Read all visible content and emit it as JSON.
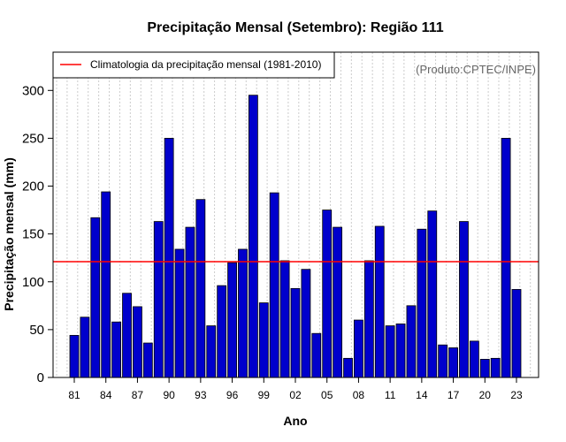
{
  "chart_data": {
    "type": "bar",
    "title": "Precipitação Mensal (Setembro): Região 111",
    "xlabel": "Ano",
    "ylabel": "Precipitação mensal (mm)",
    "credit": "(Produto:CPTEC/INPE)",
    "ylim": [
      0,
      340
    ],
    "yticks": [
      0,
      50,
      100,
      150,
      200,
      250,
      300
    ],
    "categories": [
      "81",
      "82",
      "83",
      "84",
      "85",
      "86",
      "87",
      "88",
      "89",
      "90",
      "91",
      "92",
      "93",
      "94",
      "95",
      "96",
      "97",
      "98",
      "99",
      "00",
      "01",
      "02",
      "03",
      "04",
      "05",
      "06",
      "07",
      "08",
      "09",
      "10",
      "11",
      "12",
      "13",
      "14",
      "15",
      "16",
      "17",
      "18",
      "19",
      "20",
      "21",
      "22",
      "23"
    ],
    "xtick_labels": [
      "81",
      "84",
      "87",
      "90",
      "93",
      "96",
      "99",
      "02",
      "05",
      "08",
      "11",
      "14",
      "17",
      "20",
      "23"
    ],
    "series": [
      {
        "name": "Precipitação mensal",
        "color": "#0000cc",
        "values": [
          44,
          63,
          167,
          194,
          58,
          88,
          74,
          36,
          163,
          250,
          134,
          157,
          186,
          54,
          96,
          120,
          134,
          295,
          78,
          193,
          122,
          93,
          113,
          46,
          175,
          157,
          20,
          60,
          122,
          158,
          54,
          56,
          75,
          155,
          174,
          34,
          31,
          163,
          38,
          19,
          20,
          250,
          92
        ]
      }
    ],
    "reference_line": {
      "label": "Climatologia da precipitação mensal (1981-2010)",
      "value": 121,
      "color": "#ff0000"
    },
    "legend": "top-left",
    "grid": "vertical-dashed"
  }
}
